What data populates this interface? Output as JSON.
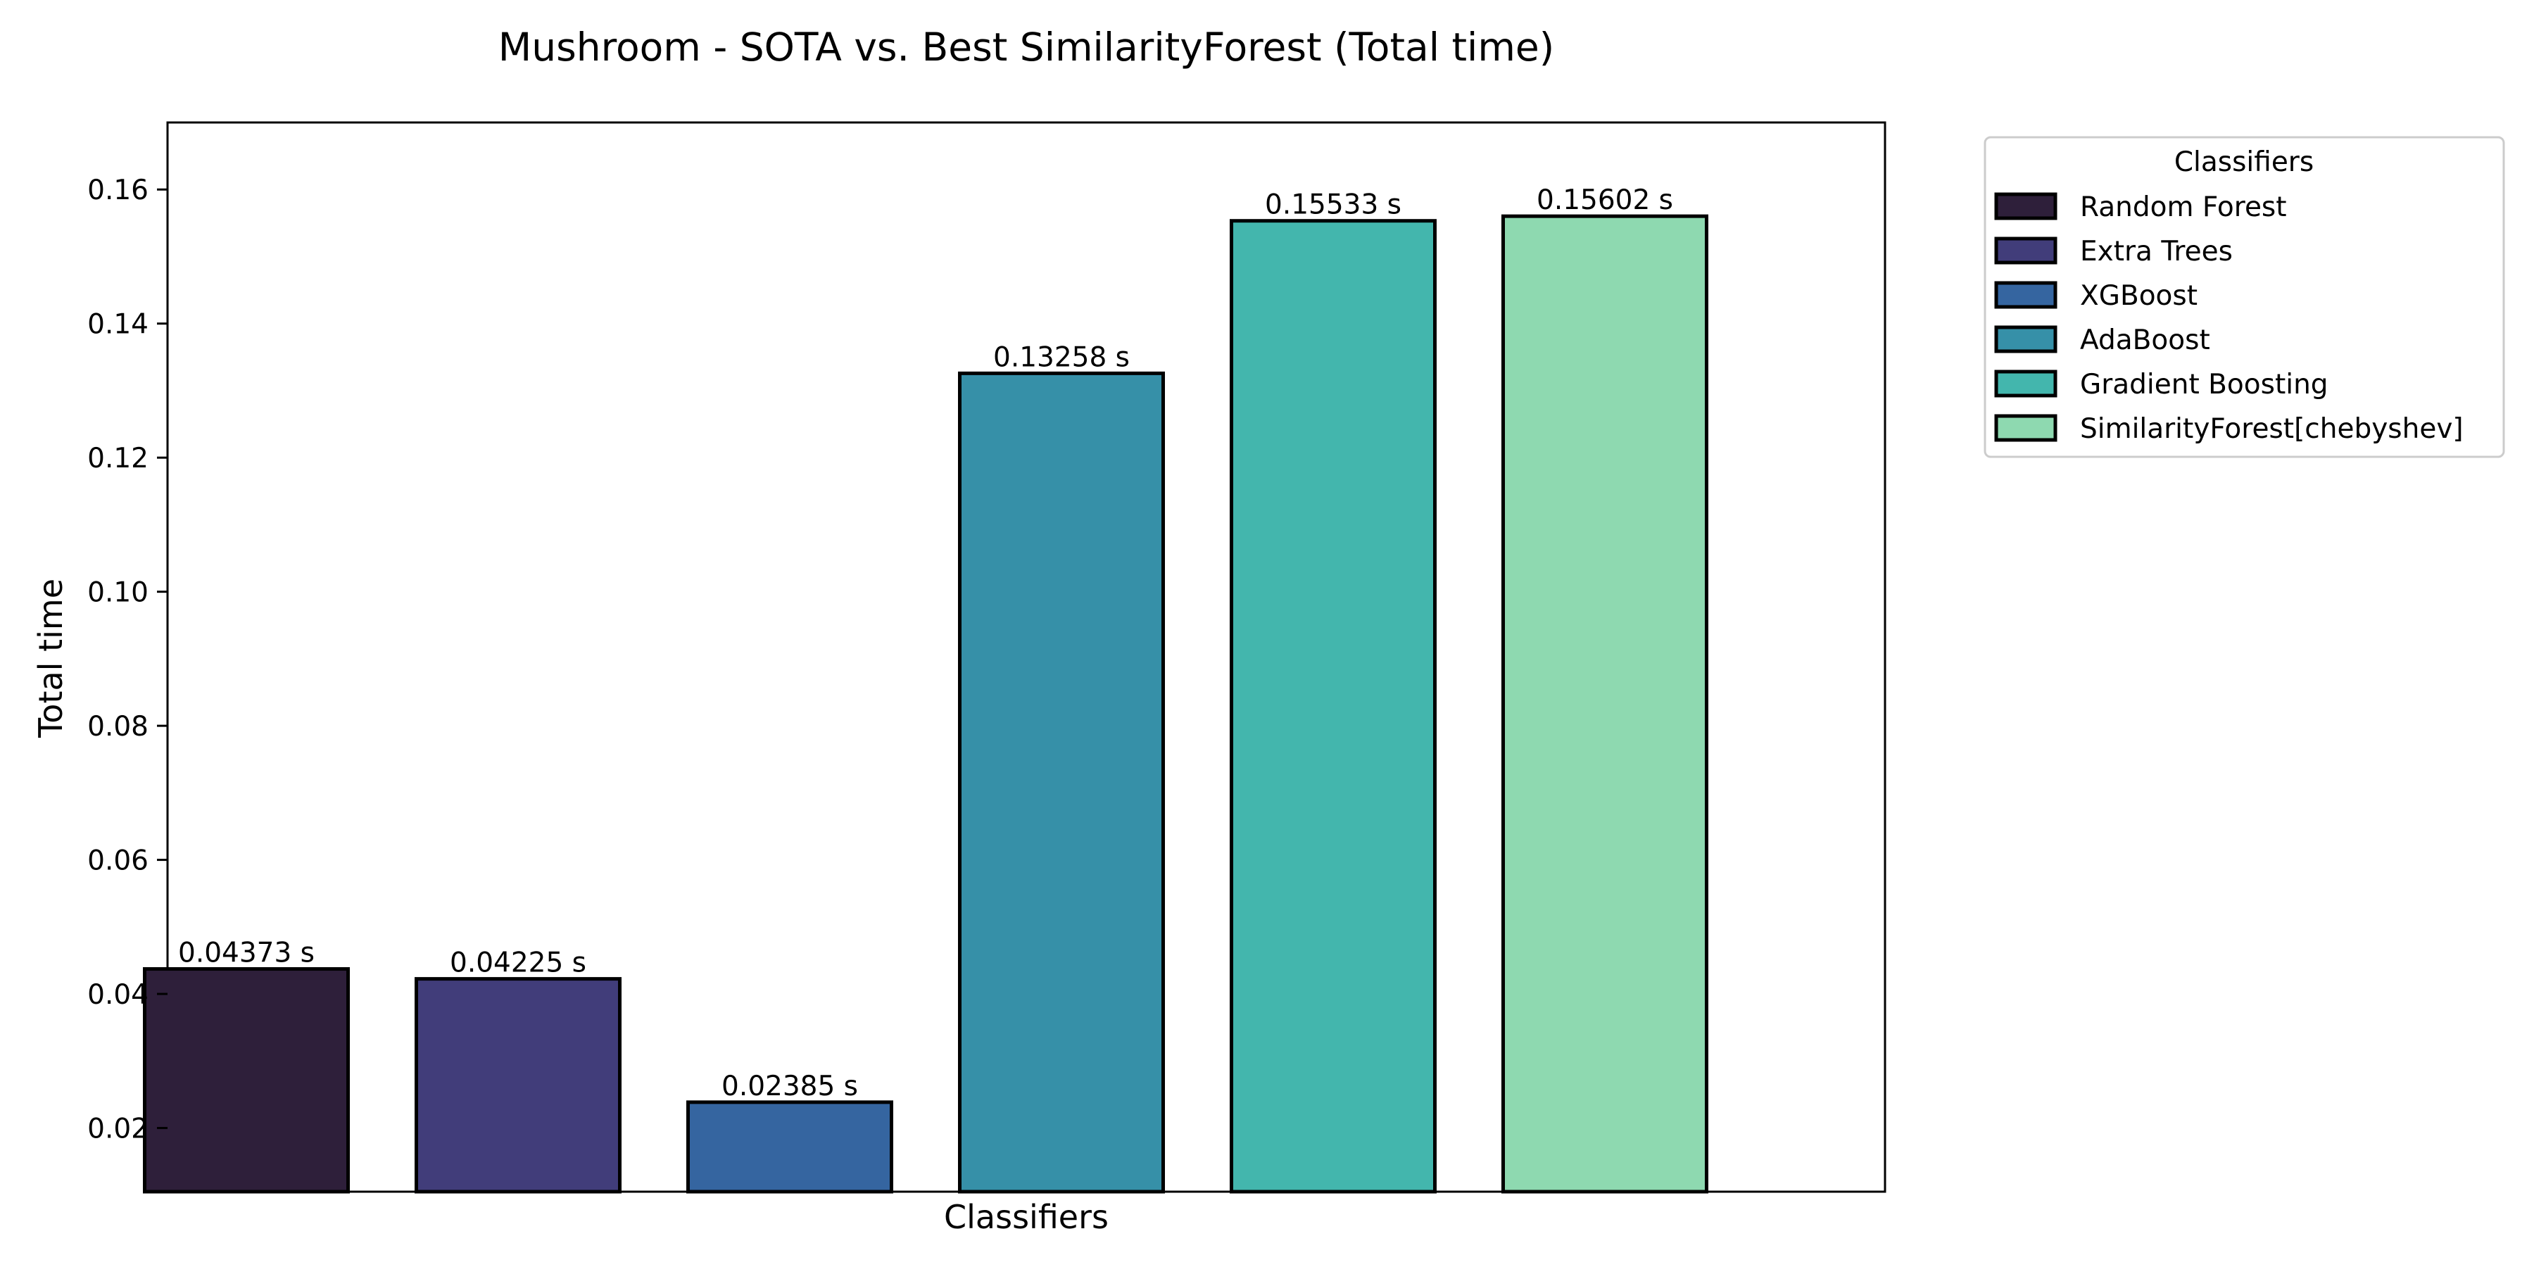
{
  "chart_data": {
    "type": "bar",
    "title": "Mushroom - SOTA vs. Best SimilarityForest (Total time)",
    "xlabel": "Classifiers",
    "ylabel": "Total time",
    "ylim": [
      0.0105,
      0.17
    ],
    "yticks": [
      0.02,
      0.04,
      0.06,
      0.08,
      0.1,
      0.12,
      0.14,
      0.16
    ],
    "ytick_labels": [
      "0.02",
      "0.04",
      "0.06",
      "0.08",
      "0.10",
      "0.12",
      "0.14",
      "0.16"
    ],
    "grid": false,
    "categories": [
      "Random Forest",
      "Extra Trees",
      "XGBoost",
      "AdaBoost",
      "Gradient Boosting",
      "SimilarityForest[chebyshev]"
    ],
    "values": [
      0.04373,
      0.04225,
      0.02385,
      0.13258,
      0.15533,
      0.15602
    ],
    "data_labels": [
      "0.04373 s",
      "0.04225 s",
      "0.02385 s",
      "0.13258 s",
      "0.15533 s",
      "0.15602 s"
    ],
    "colors": [
      "#2e1f3a",
      "#413d7a",
      "#3565a0",
      "#3690a8",
      "#43b6ad",
      "#8ed9b0"
    ],
    "edge_color": "#000000",
    "legend": {
      "title": "Classifiers",
      "placement": "outside-upper-right",
      "entries": [
        "Random Forest",
        "Extra Trees",
        "XGBoost",
        "AdaBoost",
        "Gradient Boosting",
        "SimilarityForest[chebyshev]"
      ]
    }
  }
}
